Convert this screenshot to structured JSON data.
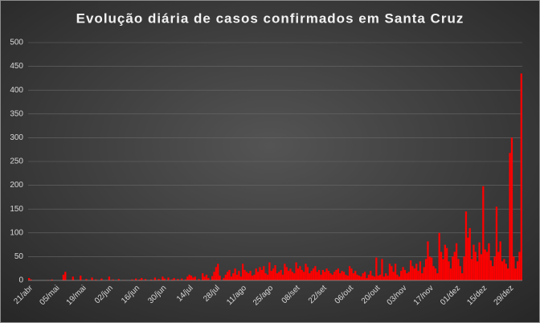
{
  "chart_data": {
    "type": "bar",
    "title": "Evolução  diária  de casos confirmados  em Santa  Cruz",
    "categories": [
      "21/abr",
      null,
      null,
      null,
      null,
      null,
      null,
      null,
      null,
      null,
      null,
      null,
      null,
      null,
      "05/mai",
      null,
      null,
      null,
      null,
      null,
      null,
      null,
      null,
      null,
      null,
      null,
      null,
      null,
      "19/mai",
      null,
      null,
      null,
      null,
      null,
      null,
      null,
      null,
      null,
      null,
      null,
      null,
      null,
      "02/jun",
      null,
      null,
      null,
      null,
      null,
      null,
      null,
      null,
      null,
      null,
      null,
      null,
      null,
      "16/jun",
      null,
      null,
      null,
      null,
      null,
      null,
      null,
      null,
      null,
      null,
      null,
      null,
      null,
      "30/jun",
      null,
      null,
      null,
      null,
      null,
      null,
      null,
      null,
      null,
      null,
      null,
      null,
      null,
      "14/jul",
      null,
      null,
      null,
      null,
      null,
      null,
      null,
      null,
      null,
      null,
      null,
      null,
      null,
      "28/jul",
      null,
      null,
      null,
      null,
      null,
      null,
      null,
      null,
      null,
      null,
      null,
      null,
      null,
      "11/ago",
      null,
      null,
      null,
      null,
      null,
      null,
      null,
      null,
      null,
      null,
      null,
      null,
      null,
      "25/ago",
      null,
      null,
      null,
      null,
      null,
      null,
      null,
      null,
      null,
      null,
      null,
      null,
      null,
      "08/set",
      null,
      null,
      null,
      null,
      null,
      null,
      null,
      null,
      null,
      null,
      null,
      null,
      null,
      "22/set",
      null,
      null,
      null,
      null,
      null,
      null,
      null,
      null,
      null,
      null,
      null,
      null,
      null,
      "06/out",
      null,
      null,
      null,
      null,
      null,
      null,
      null,
      null,
      null,
      null,
      null,
      null,
      null,
      "20/out",
      null,
      null,
      null,
      null,
      null,
      null,
      null,
      null,
      null,
      null,
      null,
      null,
      null,
      "03/nov",
      null,
      null,
      null,
      null,
      null,
      null,
      null,
      null,
      null,
      null,
      null,
      null,
      null,
      "17/nov",
      null,
      null,
      null,
      null,
      null,
      null,
      null,
      null,
      null,
      null,
      null,
      null,
      null,
      "01/dez",
      null,
      null,
      null,
      null,
      null,
      null,
      null,
      null,
      null,
      null,
      null,
      null,
      null,
      "15/dez",
      null,
      null,
      null,
      null,
      null,
      null,
      null,
      null,
      null,
      null,
      null,
      null,
      null,
      "29/dez",
      null,
      null,
      null,
      null,
      null,
      null
    ],
    "values": [
      5,
      2,
      0,
      0,
      0,
      0,
      0,
      0,
      0,
      0,
      1,
      0,
      2,
      0,
      0,
      0,
      0,
      0,
      12,
      18,
      0,
      0,
      0,
      8,
      0,
      0,
      0,
      10,
      0,
      0,
      3,
      0,
      0,
      6,
      0,
      2,
      0,
      0,
      4,
      0,
      0,
      0,
      8,
      0,
      2,
      0,
      0,
      3,
      0,
      0,
      1,
      0,
      0,
      0,
      2,
      0,
      4,
      0,
      2,
      5,
      0,
      3,
      0,
      0,
      2,
      0,
      6,
      0,
      3,
      0,
      8,
      4,
      0,
      6,
      0,
      2,
      5,
      0,
      3,
      0,
      4,
      0,
      2,
      8,
      12,
      10,
      6,
      8,
      0,
      3,
      0,
      15,
      8,
      12,
      5,
      0,
      9,
      18,
      28,
      35,
      10,
      0,
      5,
      12,
      18,
      22,
      8,
      15,
      25,
      12,
      20,
      8,
      35,
      22,
      18,
      15,
      20,
      10,
      12,
      25,
      18,
      28,
      22,
      30,
      15,
      12,
      38,
      20,
      25,
      32,
      15,
      18,
      22,
      12,
      35,
      28,
      20,
      25,
      18,
      15,
      38,
      25,
      30,
      22,
      18,
      35,
      28,
      15,
      20,
      25,
      30,
      18,
      22,
      12,
      22,
      18,
      25,
      20,
      15,
      12,
      18,
      22,
      25,
      15,
      20,
      18,
      12,
      10,
      30,
      25,
      15,
      20,
      12,
      10,
      8,
      15,
      18,
      5,
      12,
      20,
      10,
      8,
      48,
      10,
      12,
      45,
      8,
      15,
      10,
      35,
      30,
      18,
      35,
      12,
      8,
      20,
      28,
      22,
      15,
      18,
      42,
      30,
      25,
      35,
      20,
      40,
      15,
      28,
      45,
      82,
      50,
      48,
      30,
      25,
      15,
      100,
      60,
      45,
      75,
      68,
      40,
      25,
      50,
      60,
      78,
      45,
      30,
      15,
      50,
      145,
      90,
      110,
      45,
      75,
      60,
      40,
      80,
      55,
      198,
      65,
      60,
      78,
      42,
      30,
      50,
      155,
      60,
      82,
      40,
      45,
      35,
      25,
      268,
      300,
      50,
      25,
      40,
      60,
      435
    ],
    "color": "#ff0000",
    "ylim": [
      0,
      500
    ],
    "yticks": [
      0,
      50,
      100,
      150,
      200,
      250,
      300,
      350,
      400,
      450,
      500
    ],
    "grid": true
  }
}
